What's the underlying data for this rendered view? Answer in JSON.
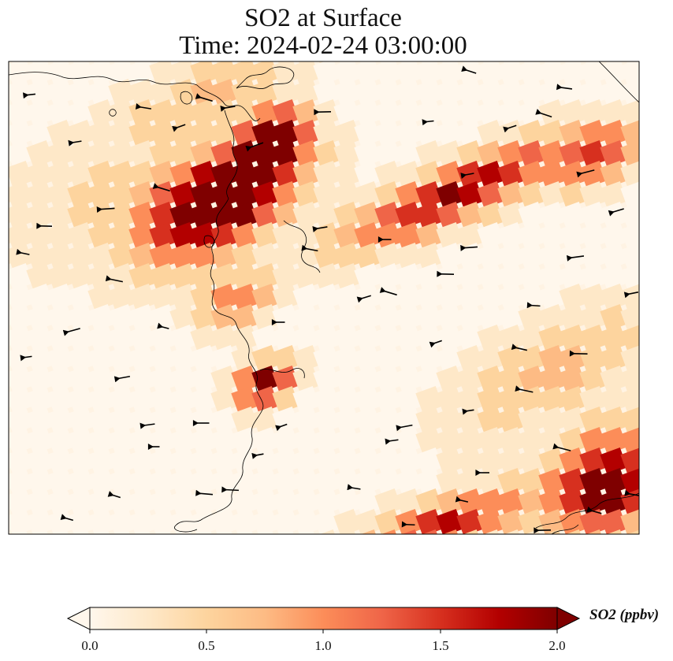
{
  "title": {
    "line1": "SO2 at Surface",
    "line2": "Time: 2024-02-24 03:00:00"
  },
  "colorbar": {
    "label": "SO2 (ppbv)",
    "ticks": [
      "0.0",
      "0.5",
      "1.0",
      "1.5",
      "2.0"
    ],
    "vmin": 0.0,
    "vmax": 2.0,
    "extend": "both",
    "colormap": "OrRd",
    "colors": [
      "#fff7ec",
      "#fee8c8",
      "#fdd49e",
      "#fdbb84",
      "#fc8d59",
      "#ef6548",
      "#d7301f",
      "#b30000",
      "#7f0000"
    ]
  },
  "map": {
    "field": "SO2",
    "level": "Surface",
    "units": "ppbv",
    "has_coastlines": true,
    "has_wind_vectors": true
  }
}
